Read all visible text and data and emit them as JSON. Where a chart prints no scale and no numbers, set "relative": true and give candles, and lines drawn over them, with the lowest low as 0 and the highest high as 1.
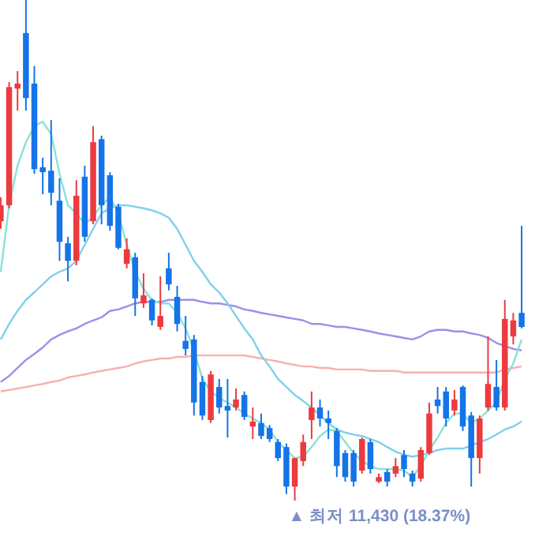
{
  "chart_data": {
    "type": "candlestick",
    "relative": true,
    "categories": [
      null,
      null,
      null,
      null,
      null,
      null,
      null,
      null,
      null,
      null,
      null,
      null,
      null,
      null,
      null,
      null,
      null,
      null,
      null,
      null,
      null,
      null,
      null,
      null,
      null,
      null,
      null,
      null,
      null,
      null,
      null,
      null,
      null,
      null,
      null,
      null,
      null,
      null,
      null,
      null,
      null,
      null,
      null,
      null,
      null,
      null,
      null,
      null,
      null,
      null,
      null,
      null,
      null,
      null,
      null,
      null,
      null,
      null,
      null,
      null,
      null,
      null,
      null
    ],
    "ohlc": [
      [
        0.558,
        0.606,
        0.543,
        0.59
      ],
      [
        0.59,
        0.836,
        0.584,
        0.826
      ],
      [
        0.823,
        0.858,
        0.779,
        0.833
      ],
      [
        0.934,
        1,
        0.779,
        0.804
      ],
      [
        0.833,
        0.868,
        0.653,
        0.662
      ],
      [
        0.666,
        0.685,
        0.612,
        0.656
      ],
      [
        0.659,
        0.76,
        0.59,
        0.615
      ],
      [
        0.599,
        0.644,
        0.479,
        0.517
      ],
      [
        0.514,
        0.527,
        0.438,
        0.479
      ],
      [
        0.479,
        0.64,
        0.47,
        0.609
      ],
      [
        0.647,
        0.669,
        0.517,
        0.527
      ],
      [
        0.558,
        0.748,
        0.552,
        0.716
      ],
      [
        0.722,
        0.729,
        0.552,
        0.59
      ],
      [
        0.65,
        0.656,
        0.539,
        0.549
      ],
      [
        0.587,
        0.593,
        0.502,
        0.505
      ],
      [
        0.473,
        0.524,
        0.464,
        0.502
      ],
      [
        0.486,
        0.495,
        0.369,
        0.404
      ],
      [
        0.394,
        0.454,
        0.385,
        0.41
      ],
      [
        0.401,
        0.404,
        0.35,
        0.36
      ],
      [
        0.347,
        0.448,
        0.341,
        0.369
      ],
      [
        0.464,
        0.495,
        0.42,
        0.432
      ],
      [
        0.407,
        0.429,
        0.338,
        0.353
      ],
      [
        0.319,
        0.369,
        0.29,
        0.303
      ],
      [
        0.322,
        0.331,
        0.17,
        0.196
      ],
      [
        0.237,
        0.249,
        0.161,
        0.17
      ],
      [
        0.161,
        0.259,
        0.155,
        0.252
      ],
      [
        0.227,
        0.243,
        0.174,
        0.186
      ],
      [
        0.189,
        0.243,
        0.126,
        0.18
      ],
      [
        0.186,
        0.224,
        0.18,
        0.202
      ],
      [
        0.211,
        0.218,
        0.161,
        0.167
      ],
      [
        0.148,
        0.186,
        0.123,
        0.158
      ],
      [
        0.155,
        0.174,
        0.123,
        0.129
      ],
      [
        0.145,
        0.151,
        0.117,
        0.123
      ],
      [
        0.117,
        0.123,
        0.079,
        0.085
      ],
      [
        0.107,
        0.114,
        0.013,
        0.028
      ],
      [
        0.028,
        0.085,
        0,
        0.085
      ],
      [
        0.079,
        0.132,
        0.069,
        0.117
      ],
      [
        0.161,
        0.218,
        0.123,
        0.186
      ],
      [
        0.186,
        0.202,
        0.148,
        0.164
      ],
      [
        0.164,
        0.18,
        0.123,
        0.155
      ],
      [
        0.139,
        0.145,
        0.047,
        0.069
      ],
      [
        0.095,
        0.101,
        0.038,
        0.047
      ],
      [
        0.095,
        0.101,
        0.028,
        0.038
      ],
      [
        0.06,
        0.126,
        0.054,
        0.123
      ],
      [
        0.117,
        0.123,
        0.054,
        0.063
      ],
      [
        0.038,
        0.054,
        0.035,
        0.047
      ],
      [
        0.057,
        0.063,
        0.028,
        0.038
      ],
      [
        0.054,
        0.085,
        0.047,
        0.069
      ],
      [
        0.091,
        0.101,
        0.047,
        0.063
      ],
      [
        0.054,
        0.06,
        0.028,
        0.038
      ],
      [
        0.044,
        0.107,
        0.038,
        0.101
      ],
      [
        0.095,
        0.196,
        0.091,
        0.174
      ],
      [
        0.202,
        0.227,
        0.174,
        0.189
      ],
      [
        0.218,
        0.227,
        0.148,
        0.164
      ],
      [
        0.18,
        0.221,
        0.17,
        0.202
      ],
      [
        0.227,
        0.23,
        0.139,
        0.148
      ],
      [
        0.17,
        0.177,
        0.028,
        0.085
      ],
      [
        0.085,
        0.17,
        0.054,
        0.164
      ],
      [
        0.186,
        0.328,
        0.18,
        0.233
      ],
      [
        0.227,
        0.281,
        0.18,
        0.186
      ],
      [
        0.186,
        0.401,
        0.18,
        0.363
      ],
      [
        0.328,
        0.375,
        0.312,
        0.36
      ],
      [
        0.375,
        0.549,
        0.344,
        0.347
      ]
    ],
    "colors": [
      "#ec3a3f",
      "#ec3a3f",
      "#ec3a3f",
      "#1474e8",
      "#1474e8",
      "#1474e8",
      "#1474e8",
      "#1474e8",
      "#1474e8",
      "#ec3a3f",
      "#1474e8",
      "#ec3a3f",
      "#1474e8",
      "#1474e8",
      "#1474e8",
      "#ec3a3f",
      "#1474e8",
      "#ec3a3f",
      "#1474e8",
      "#ec3a3f",
      "#1474e8",
      "#1474e8",
      "#1474e8",
      "#1474e8",
      "#1474e8",
      "#ec3a3f",
      "#1474e8",
      "#1474e8",
      "#ec3a3f",
      "#1474e8",
      "#ec3a3f",
      "#1474e8",
      "#1474e8",
      "#1474e8",
      "#1474e8",
      "#ec3a3f",
      "#ec3a3f",
      "#ec3a3f",
      "#1474e8",
      "#1474e8",
      "#1474e8",
      "#1474e8",
      "#1474e8",
      "#ec3a3f",
      "#1474e8",
      "#ec3a3f",
      "#1474e8",
      "#ec3a3f",
      "#1474e8",
      "#1474e8",
      "#ec3a3f",
      "#ec3a3f",
      "#1474e8",
      "#1474e8",
      "#ec3a3f",
      "#1474e8",
      "#1474e8",
      "#ec3a3f",
      "#ec3a3f",
      "#1474e8",
      "#ec3a3f",
      "#ec3a3f",
      "#1474e8"
    ],
    "series": [
      {
        "type": "line",
        "color": "#f7b0b0",
        "values": [
          0.218,
          0.221,
          0.224,
          0.227,
          0.23,
          0.233,
          0.237,
          0.24,
          0.246,
          0.249,
          0.252,
          0.256,
          0.259,
          0.262,
          0.265,
          0.268,
          0.274,
          0.278,
          0.281,
          0.284,
          0.284,
          0.287,
          0.287,
          0.29,
          0.29,
          0.29,
          0.29,
          0.29,
          0.29,
          0.29,
          0.287,
          0.284,
          0.281,
          0.278,
          0.274,
          0.271,
          0.268,
          0.268,
          0.265,
          0.265,
          0.262,
          0.262,
          0.262,
          0.262,
          0.259,
          0.259,
          0.259,
          0.259,
          0.256,
          0.256,
          0.256,
          0.256,
          0.256,
          0.256,
          0.256,
          0.256,
          0.256,
          0.256,
          0.256,
          0.256,
          0.262,
          0.265,
          0.268
        ]
      },
      {
        "type": "line",
        "color": "#a08ee8",
        "values": [
          0.237,
          0.249,
          0.265,
          0.281,
          0.293,
          0.306,
          0.322,
          0.331,
          0.338,
          0.344,
          0.353,
          0.36,
          0.366,
          0.379,
          0.382,
          0.388,
          0.394,
          0.397,
          0.397,
          0.397,
          0.401,
          0.401,
          0.401,
          0.401,
          0.397,
          0.394,
          0.394,
          0.391,
          0.388,
          0.382,
          0.379,
          0.375,
          0.372,
          0.369,
          0.366,
          0.363,
          0.36,
          0.353,
          0.353,
          0.35,
          0.347,
          0.347,
          0.344,
          0.341,
          0.338,
          0.334,
          0.331,
          0.328,
          0.325,
          0.322,
          0.328,
          0.338,
          0.341,
          0.341,
          0.338,
          0.338,
          0.334,
          0.331,
          0.325,
          0.315,
          0.309,
          0.303,
          0.3
        ]
      },
      {
        "type": "line",
        "color": "#7fd0ec",
        "values": [
          0.322,
          0.353,
          0.379,
          0.401,
          0.416,
          0.432,
          0.448,
          0.457,
          0.464,
          0.479,
          0.511,
          0.543,
          0.574,
          0.584,
          0.59,
          0.59,
          0.587,
          0.584,
          0.58,
          0.574,
          0.565,
          0.543,
          0.511,
          0.479,
          0.457,
          0.432,
          0.416,
          0.394,
          0.369,
          0.344,
          0.322,
          0.29,
          0.268,
          0.243,
          0.227,
          0.211,
          0.199,
          0.186,
          0.17,
          0.155,
          0.142,
          0.136,
          0.132,
          0.129,
          0.123,
          0.117,
          0.107,
          0.098,
          0.091,
          0.088,
          0.091,
          0.095,
          0.101,
          0.104,
          0.104,
          0.104,
          0.11,
          0.117,
          0.123,
          0.132,
          0.142,
          0.148,
          0.158
        ]
      },
      {
        "type": "line",
        "color": "#86e3d6",
        "values": [
          0.457,
          0.59,
          0.669,
          0.716,
          0.748,
          0.757,
          0.732,
          0.653,
          0.59,
          0.574,
          0.552,
          0.568,
          0.59,
          0.606,
          0.574,
          0.511,
          0.457,
          0.423,
          0.401,
          0.394,
          0.394,
          0.375,
          0.344,
          0.3,
          0.243,
          0.218,
          0.205,
          0.196,
          0.186,
          0.174,
          0.164,
          0.155,
          0.142,
          0.117,
          0.101,
          0.085,
          0.088,
          0.107,
          0.129,
          0.142,
          0.139,
          0.117,
          0.095,
          0.079,
          0.069,
          0.063,
          0.063,
          0.063,
          0.06,
          0.047,
          0.069,
          0.101,
          0.126,
          0.155,
          0.174,
          0.174,
          0.155,
          0.164,
          0.18,
          0.196,
          0.243,
          0.274,
          0.322
        ]
      }
    ],
    "annotations": [
      "▲ 최저 11,430 (18.37%)"
    ]
  }
}
